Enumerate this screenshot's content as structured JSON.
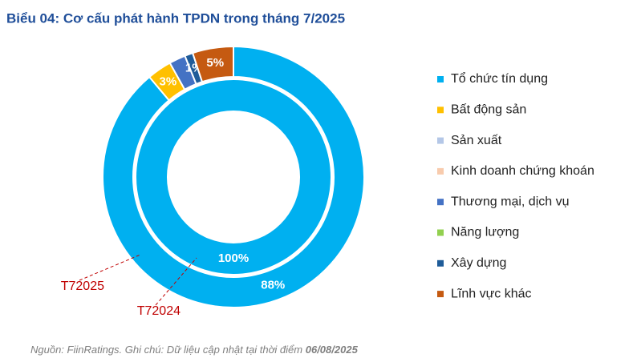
{
  "chart_data": {
    "type": "donut",
    "title": "Biểu 04: Cơ cấu phát hành TPDN trong tháng 7/2025",
    "categories": [
      "Tổ chức tín dụng",
      "Bất động sản",
      "Sản xuất",
      "Kinh doanh chứng khoán",
      "Thương mại, dịch vụ",
      "Năng lượng",
      "Xây dựng",
      "Lĩnh vực khác"
    ],
    "colors": [
      "#00b0f0",
      "#ffc000",
      "#b4c7e7",
      "#f8cbad",
      "#4472c4",
      "#92d050",
      "#1f5c99",
      "#c55a11"
    ],
    "series": [
      {
        "name": "T72025",
        "values": [
          88,
          3,
          0,
          0,
          2,
          0,
          1,
          5
        ],
        "value_labels": [
          "88%",
          "3%",
          null,
          null,
          null,
          null,
          "1%",
          "5%"
        ]
      },
      {
        "name": "T72024",
        "values": [
          100,
          0,
          0,
          0,
          0,
          0,
          0,
          0
        ],
        "value_labels": [
          "100%",
          null,
          null,
          null,
          null,
          null,
          null,
          null
        ]
      }
    ],
    "source": "Nguồn: FiinRatings. Ghi chú: Dữ liệu cập nhật tại thời điểm",
    "source_date": "06/08/2025"
  }
}
